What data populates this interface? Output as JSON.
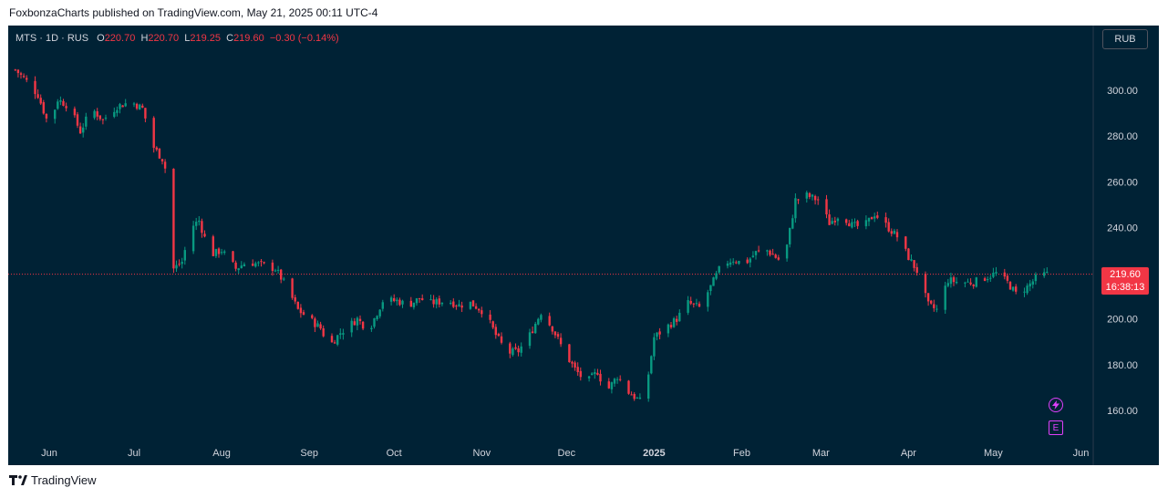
{
  "header": {
    "publisher_line": "FoxbonzaCharts published on TradingView.com, May 21, 2025 00:11 UTC-4"
  },
  "legend": {
    "symbol": "MTS · 1D · RUS",
    "open_label": "O",
    "open": "220.70",
    "high_label": "H",
    "high": "220.70",
    "low_label": "L",
    "low": "219.25",
    "close_label": "C",
    "close": "219.60",
    "change": "−0.30 (−0.14%)"
  },
  "currency_button": "RUB",
  "price_badge": {
    "price": "219.60",
    "countdown": "16:38:13"
  },
  "events": {
    "dividend_icon": "lightning-icon",
    "earnings_label": "E"
  },
  "footer": {
    "brand": "TradingView"
  },
  "colors": {
    "up": "#089981",
    "down": "#f23645",
    "background": "#002235",
    "text": "#d1d4dc"
  },
  "chart_data": {
    "type": "candlestick",
    "y_axis": {
      "ticks": [
        "300.00",
        "280.00",
        "260.00",
        "240.00",
        "220.00",
        "200.00",
        "180.00",
        "160.00"
      ],
      "range": [
        152,
        312
      ]
    },
    "x_axis": {
      "ticks": [
        "Jun",
        "Jul",
        "Aug",
        "Sep",
        "Oct",
        "Nov",
        "Dec",
        "2025",
        "Feb",
        "Mar",
        "Apr",
        "May",
        "Jun"
      ]
    },
    "last_price": 219.6,
    "anchors": [
      [
        "2024-05-20",
        309.0
      ],
      [
        "2024-05-24",
        304.0
      ],
      [
        "2024-05-28",
        298.0
      ],
      [
        "2024-06-01",
        284.0
      ],
      [
        "2024-06-04",
        296.0
      ],
      [
        "2024-06-08",
        293.0
      ],
      [
        "2024-06-12",
        282.0
      ],
      [
        "2024-06-16",
        292.0
      ],
      [
        "2024-06-20",
        287.0
      ],
      [
        "2024-06-25",
        293.0
      ],
      [
        "2024-06-30",
        295.0
      ],
      [
        "2024-07-04",
        292.0
      ],
      [
        "2024-07-08",
        275.0
      ],
      [
        "2024-07-11",
        270.0
      ],
      [
        "2024-07-13",
        262.0
      ],
      [
        "2024-07-15",
        222.0
      ],
      [
        "2024-07-18",
        225.0
      ],
      [
        "2024-07-21",
        240.0
      ],
      [
        "2024-07-24",
        243.0
      ],
      [
        "2024-07-28",
        228.0
      ],
      [
        "2024-08-01",
        230.0
      ],
      [
        "2024-08-06",
        222.0
      ],
      [
        "2024-08-10",
        225.0
      ],
      [
        "2024-08-14",
        224.0
      ],
      [
        "2024-08-20",
        222.0
      ],
      [
        "2024-08-24",
        214.0
      ],
      [
        "2024-08-28",
        204.0
      ],
      [
        "2024-09-01",
        200.0
      ],
      [
        "2024-09-05",
        196.0
      ],
      [
        "2024-09-08",
        188.0
      ],
      [
        "2024-09-12",
        194.0
      ],
      [
        "2024-09-18",
        200.0
      ],
      [
        "2024-09-22",
        195.0
      ],
      [
        "2024-09-27",
        208.0
      ],
      [
        "2024-10-02",
        208.0
      ],
      [
        "2024-10-06",
        206.0
      ],
      [
        "2024-10-10",
        209.0
      ],
      [
        "2024-10-14",
        207.0
      ],
      [
        "2024-10-20",
        208.0
      ],
      [
        "2024-10-24",
        206.0
      ],
      [
        "2024-10-28",
        207.0
      ],
      [
        "2024-11-02",
        203.0
      ],
      [
        "2024-11-06",
        193.0
      ],
      [
        "2024-11-10",
        185.0
      ],
      [
        "2024-11-14",
        186.0
      ],
      [
        "2024-11-18",
        193.0
      ],
      [
        "2024-11-22",
        203.0
      ],
      [
        "2024-11-26",
        196.0
      ],
      [
        "2024-11-30",
        186.0
      ],
      [
        "2024-12-04",
        178.0
      ],
      [
        "2024-12-08",
        172.0
      ],
      [
        "2024-12-12",
        177.0
      ],
      [
        "2024-12-15",
        168.0
      ],
      [
        "2024-12-19",
        175.0
      ],
      [
        "2024-12-23",
        168.0
      ],
      [
        "2024-12-27",
        164.0
      ],
      [
        "2024-12-29",
        168.0
      ],
      [
        "2025-01-01",
        192.0
      ],
      [
        "2025-01-05",
        196.0
      ],
      [
        "2025-01-09",
        200.0
      ],
      [
        "2025-01-13",
        207.0
      ],
      [
        "2025-01-17",
        205.0
      ],
      [
        "2025-01-21",
        214.0
      ],
      [
        "2025-01-25",
        224.0
      ],
      [
        "2025-01-29",
        226.0
      ],
      [
        "2025-02-02",
        224.0
      ],
      [
        "2025-02-06",
        229.0
      ],
      [
        "2025-02-10",
        230.0
      ],
      [
        "2025-02-14",
        226.0
      ],
      [
        "2025-02-17",
        232.0
      ],
      [
        "2025-02-20",
        252.0
      ],
      [
        "2025-02-24",
        254.0
      ],
      [
        "2025-02-28",
        252.0
      ],
      [
        "2025-03-04",
        242.0
      ],
      [
        "2025-03-08",
        246.0
      ],
      [
        "2025-03-12",
        241.0
      ],
      [
        "2025-03-16",
        240.0
      ],
      [
        "2025-03-20",
        246.0
      ],
      [
        "2025-03-24",
        241.0
      ],
      [
        "2025-03-28",
        236.0
      ],
      [
        "2025-04-01",
        227.0
      ],
      [
        "2025-04-04",
        221.0
      ],
      [
        "2025-04-08",
        206.0
      ],
      [
        "2025-04-11",
        204.0
      ],
      [
        "2025-04-15",
        217.0
      ],
      [
        "2025-04-19",
        216.0
      ],
      [
        "2025-04-24",
        216.0
      ],
      [
        "2025-04-28",
        218.0
      ],
      [
        "2025-05-02",
        220.0
      ],
      [
        "2025-05-06",
        216.0
      ],
      [
        "2025-05-09",
        211.0
      ],
      [
        "2025-05-13",
        214.0
      ],
      [
        "2025-05-17",
        219.0
      ],
      [
        "2025-05-20",
        219.6
      ]
    ]
  }
}
